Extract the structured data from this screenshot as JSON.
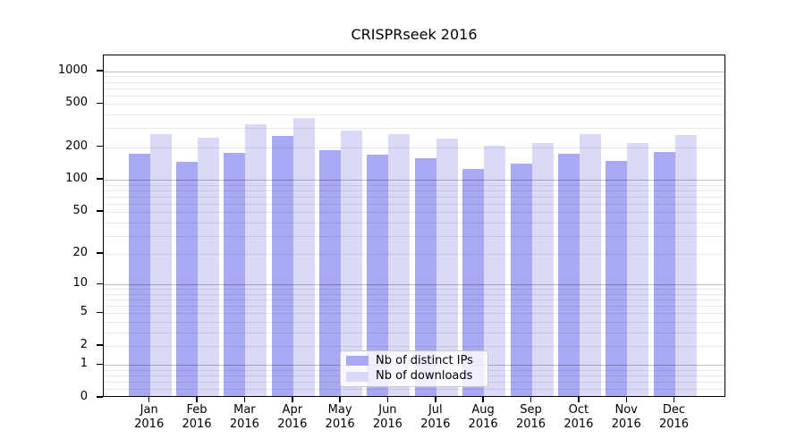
{
  "title": "CRISPRseek 2016",
  "colors": {
    "series_ips": "#a9a9f3",
    "series_downloads": "#dadaf8",
    "grid_major": "rgba(0,0,0,0.26)",
    "grid_minor": "rgba(0,0,0,0.09)",
    "axis": "#000000",
    "legend_border": "#c9c9c9"
  },
  "chart_data": {
    "type": "bar",
    "title": "CRISPRseek 2016",
    "categories": [
      "Jan",
      "Feb",
      "Mar",
      "Apr",
      "May",
      "Jun",
      "Jul",
      "Aug",
      "Sep",
      "Oct",
      "Nov",
      "Dec"
    ],
    "category_sublabel": "2016",
    "series": [
      {
        "name": "Nb of distinct IPs",
        "color": "#a9a9f3",
        "values": [
          167,
          140,
          172,
          245,
          182,
          163,
          152,
          122,
          136,
          166,
          144,
          173
        ]
      },
      {
        "name": "Nb of downloads",
        "color": "#dadaf8",
        "values": [
          255,
          235,
          315,
          355,
          273,
          255,
          233,
          197,
          210,
          255,
          210,
          248
        ]
      }
    ],
    "xlabel": "",
    "ylabel": "",
    "yscale": "log1p",
    "yticks": [
      0,
      1,
      2,
      5,
      10,
      20,
      50,
      100,
      200,
      500,
      1000
    ],
    "ylim": [
      0,
      1400
    ],
    "grid": "both, drawn over bars",
    "legend_position": "inside bottom-center"
  }
}
